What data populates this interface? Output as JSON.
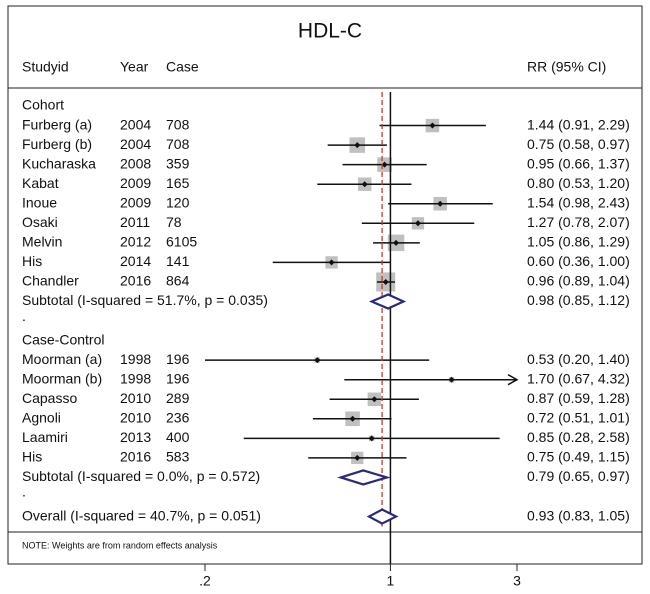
{
  "chart_data": {
    "type": "forest",
    "title": "HDL-C",
    "columns": [
      "Studyid",
      "Year",
      "Case",
      "RR (95% CI)"
    ],
    "separator": ".",
    "groups": [
      {
        "name": "Cohort",
        "studies": [
          {
            "study": "Furberg (a)",
            "year": 2004,
            "case": 708,
            "rr": 1.44,
            "ci": [
              0.91,
              2.29
            ],
            "weight": 6,
            "value_label": "1.44 (0.91, 2.29)"
          },
          {
            "study": "Furberg (b)",
            "year": 2004,
            "case": 708,
            "rr": 0.75,
            "ci": [
              0.58,
              0.97
            ],
            "weight": 8,
            "value_label": "0.75 (0.58, 0.97)"
          },
          {
            "study": "Kucharaska",
            "year": 2008,
            "case": 359,
            "rr": 0.95,
            "ci": [
              0.66,
              1.37
            ],
            "weight": 7,
            "value_label": "0.95 (0.66, 1.37)"
          },
          {
            "study": "Kabat",
            "year": 2009,
            "case": 165,
            "rr": 0.8,
            "ci": [
              0.53,
              1.2
            ],
            "weight": 6,
            "value_label": "0.80 (0.53, 1.20)"
          },
          {
            "study": "Inoue",
            "year": 2009,
            "case": 120,
            "rr": 1.54,
            "ci": [
              0.98,
              2.43
            ],
            "weight": 6,
            "value_label": "1.54 (0.98, 2.43)"
          },
          {
            "study": "Osaki",
            "year": 2011,
            "case": 78,
            "rr": 1.27,
            "ci": [
              0.78,
              2.07
            ],
            "weight": 5,
            "value_label": "1.27 (0.78, 2.07)"
          },
          {
            "study": "Melvin",
            "year": 2012,
            "case": 6105,
            "rr": 1.05,
            "ci": [
              0.86,
              1.29
            ],
            "weight": 9,
            "value_label": "1.05 (0.86, 1.29)"
          },
          {
            "study": "His",
            "year": 2014,
            "case": 141,
            "rr": 0.6,
            "ci": [
              0.36,
              1.0
            ],
            "weight": 5,
            "value_label": "0.60 (0.36, 1.00)"
          },
          {
            "study": "Chandler",
            "year": 2016,
            "case": 864,
            "rr": 0.96,
            "ci": [
              0.89,
              1.04
            ],
            "weight": 12,
            "value_label": "0.96 (0.89, 1.04)"
          }
        ],
        "subtotal": {
          "label": "Subtotal  (I-squared = 51.7%, p = 0.035)",
          "rr": 0.98,
          "ci": [
            0.85,
            1.12
          ],
          "value_label": "0.98 (0.85, 1.12)"
        }
      },
      {
        "name": "Case-Control",
        "studies": [
          {
            "study": "Moorman (a)",
            "year": 1998,
            "case": 196,
            "rr": 0.53,
            "ci": [
              0.2,
              1.4
            ],
            "weight": 1,
            "value_label": "0.53 (0.20, 1.40)"
          },
          {
            "study": "Moorman (b)",
            "year": 1998,
            "case": 196,
            "rr": 1.7,
            "ci": [
              0.67,
              4.32
            ],
            "weight": 1,
            "value_label": "1.70 (0.67, 4.32)"
          },
          {
            "study": "Capasso",
            "year": 2010,
            "case": 289,
            "rr": 0.87,
            "ci": [
              0.59,
              1.28
            ],
            "weight": 6,
            "value_label": "0.87 (0.59, 1.28)"
          },
          {
            "study": "Agnoli",
            "year": 2010,
            "case": 236,
            "rr": 0.72,
            "ci": [
              0.51,
              1.01
            ],
            "weight": 7,
            "value_label": "0.72 (0.51, 1.01)"
          },
          {
            "study": "Laamiri",
            "year": 2013,
            "case": 400,
            "rr": 0.85,
            "ci": [
              0.28,
              2.58
            ],
            "weight": 1,
            "value_label": "0.85 (0.28, 2.58)"
          },
          {
            "study": "His",
            "year": 2016,
            "case": 583,
            "rr": 0.75,
            "ci": [
              0.49,
              1.15
            ],
            "weight": 5,
            "value_label": "0.75 (0.49, 1.15)"
          }
        ],
        "subtotal": {
          "label": "Subtotal  (I-squared = 0.0%, p = 0.572)",
          "rr": 0.79,
          "ci": [
            0.65,
            0.97
          ],
          "value_label": "0.79 (0.65, 0.97)"
        }
      }
    ],
    "overall": {
      "label": "Overall  (I-squared = 40.7%, p = 0.051)",
      "rr": 0.93,
      "ci": [
        0.83,
        1.05
      ],
      "value_label": "0.93 (0.83, 1.05)"
    },
    "note": "NOTE: Weights are from random effects analysis",
    "xlim": [
      0.2,
      3
    ],
    "log_scale": true,
    "xticks": [
      {
        "value": 0.2,
        "label": ".2"
      },
      1,
      3
    ],
    "box_color": "#c0c0c0",
    "diamond_color": "#2a2a7a",
    "ref_line_color": "#c0392b"
  }
}
